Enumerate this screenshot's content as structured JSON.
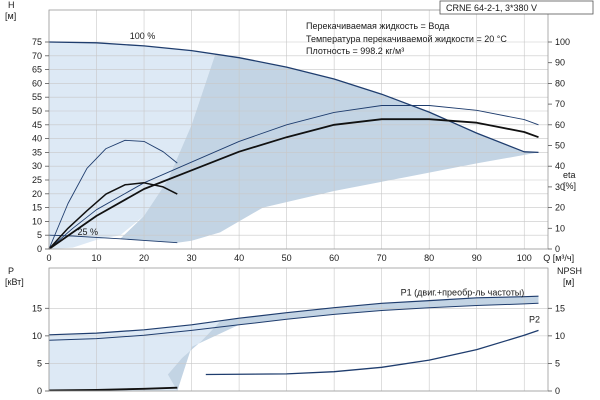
{
  "model_label": "CRNE 64-2-1, 3*380 V",
  "info_lines": [
    "Перекачиваемая жидкость = Вода",
    "Температура перекачиваемой жидкости = 20 °C",
    "Плотность = 998.2 кг/м³"
  ],
  "colors": {
    "curve": "#1f3d6e",
    "area_light": "#dde9f5",
    "area_dark": "#c3d4e4",
    "grid": "#c8c8c8",
    "frame": "#9a9a9a"
  },
  "chart_data": [
    {
      "id": "top",
      "type": "line",
      "left_axis": {
        "name": "H",
        "unit": "[м]",
        "ylim": [
          0,
          75
        ],
        "ticks": [
          0,
          5,
          10,
          15,
          20,
          25,
          30,
          35,
          40,
          45,
          50,
          55,
          60,
          65,
          70,
          75
        ]
      },
      "right_axis": {
        "name": "eta",
        "unit": "[%]",
        "ylim": [
          0,
          100
        ],
        "ticks": [
          0,
          10,
          20,
          30,
          40,
          50,
          60,
          70,
          80,
          90,
          100
        ]
      },
      "x_axis": {
        "name": "Q",
        "unit": "[м³/ч]",
        "xlim": [
          0,
          105
        ],
        "ticks": [
          0,
          10,
          20,
          30,
          40,
          50,
          60,
          70,
          80,
          90,
          100
        ]
      },
      "grid": true,
      "speed_labels": [
        {
          "text": "100 %",
          "x": 17,
          "y": 76
        },
        {
          "text": "25 %",
          "x": 6,
          "y": 5
        }
      ],
      "series": [
        {
          "axis": "left",
          "width": 1.3,
          "points": [
            [
              0,
              75
            ],
            [
              10,
              74.7
            ],
            [
              20,
              73.6
            ],
            [
              30,
              71.9
            ],
            [
              40,
              69.3
            ],
            [
              50,
              65.9
            ],
            [
              60,
              61.6
            ],
            [
              70,
              56.1
            ],
            [
              80,
              49.6
            ],
            [
              90,
              42.0
            ],
            [
              100,
              35.2
            ],
            [
              103,
              35
            ]
          ]
        },
        {
          "axis": "left",
          "width": 0.9,
          "points": [
            [
              0,
              5.0
            ],
            [
              5,
              4.7
            ],
            [
              10,
              4.2
            ],
            [
              15,
              3.7
            ],
            [
              20,
              3.1
            ],
            [
              27,
              2.3
            ]
          ]
        },
        {
          "axis": "right",
          "width": 0.9,
          "points": [
            [
              0,
              0
            ],
            [
              5,
              10
            ],
            [
              10,
              19
            ],
            [
              20,
              32
            ],
            [
              30,
              42
            ],
            [
              40,
              52
            ],
            [
              50,
              60
            ],
            [
              60,
              66
            ],
            [
              70,
              69.3
            ],
            [
              80,
              69.3
            ],
            [
              90,
              67
            ],
            [
              100,
              62.5
            ],
            [
              103,
              60
            ]
          ]
        },
        {
          "axis": "right",
          "width": 1.8,
          "points": [
            [
              0,
              0
            ],
            [
              5,
              8
            ],
            [
              10,
              16
            ],
            [
              20,
              29
            ],
            [
              30,
              38
            ],
            [
              40,
              47
            ],
            [
              50,
              54
            ],
            [
              60,
              60
            ],
            [
              70,
              62.7
            ],
            [
              80,
              62.7
            ],
            [
              90,
              61
            ],
            [
              100,
              56.5
            ],
            [
              103,
              54
            ]
          ]
        },
        {
          "axis": "right",
          "width": 0.9,
          "points": [
            [
              0,
              0
            ],
            [
              4,
              22
            ],
            [
              8,
              39
            ],
            [
              12,
              48.5
            ],
            [
              16,
              52.5
            ],
            [
              20,
              52
            ],
            [
              24,
              47
            ],
            [
              27,
              41.5
            ]
          ]
        },
        {
          "axis": "right",
          "width": 1.5,
          "points": [
            [
              0,
              0
            ],
            [
              4,
              10
            ],
            [
              8,
              18.5
            ],
            [
              12,
              26.5
            ],
            [
              16,
              31
            ],
            [
              20,
              32
            ],
            [
              24,
              30
            ],
            [
              27,
              26.5
            ]
          ]
        }
      ],
      "regions": [
        {
          "shade": "light",
          "points": [
            [
              0,
              0
            ],
            [
              0,
              75
            ],
            [
              10,
              74.7
            ],
            [
              20,
              73.6
            ],
            [
              30,
              71.9
            ],
            [
              35,
              70.6
            ],
            [
              30,
              45
            ],
            [
              25,
              25
            ],
            [
              20,
              12
            ],
            [
              15,
              5
            ],
            [
              10,
              3.3
            ],
            [
              5,
              0.5
            ]
          ]
        },
        {
          "shade": "dark",
          "points": [
            [
              35,
              70.6
            ],
            [
              40,
              69.3
            ],
            [
              50,
              65.9
            ],
            [
              60,
              61.6
            ],
            [
              70,
              56.1
            ],
            [
              80,
              49.6
            ],
            [
              90,
              42.0
            ],
            [
              100,
              35.2
            ],
            [
              103,
              35
            ],
            [
              90,
              31
            ],
            [
              75,
              26
            ],
            [
              60,
              21
            ],
            [
              45,
              15
            ],
            [
              36,
              6
            ],
            [
              30,
              3
            ],
            [
              27,
              2.3
            ],
            [
              20,
              3.1
            ],
            [
              15,
              3.7
            ],
            [
              20,
              12
            ],
            [
              25,
              25
            ],
            [
              30,
              45
            ]
          ]
        }
      ]
    },
    {
      "id": "bottom",
      "type": "line",
      "left_axis": {
        "name": "P",
        "unit": "[кВт]",
        "ylim": [
          0,
          18.5
        ],
        "ticks": [
          0,
          5,
          10,
          15
        ]
      },
      "right_axis": {
        "name": "NPSH",
        "unit": "[м]",
        "ylim": [
          0,
          18.5
        ],
        "ticks": [
          0,
          5,
          10,
          15
        ]
      },
      "x_axis": {
        "xlim": [
          0,
          105
        ],
        "ticks": [
          0,
          10,
          20,
          30,
          40,
          50,
          60,
          70,
          80,
          90,
          100
        ]
      },
      "grid": true,
      "series_labels": [
        {
          "text": "P1 (двиг.+преобр-ль частоты)",
          "x": 74,
          "y": 17.3
        },
        {
          "text": "P2",
          "x": 101,
          "y": 12.4
        }
      ],
      "series": [
        {
          "axis": "left",
          "width": 1.2,
          "points": [
            [
              0,
              10.2
            ],
            [
              10,
              10.5
            ],
            [
              20,
              11.1
            ],
            [
              30,
              12.0
            ],
            [
              40,
              13.2
            ],
            [
              50,
              14.2
            ],
            [
              60,
              15.1
            ],
            [
              70,
              15.9
            ],
            [
              80,
              16.4
            ],
            [
              90,
              16.9
            ],
            [
              100,
              17.1
            ],
            [
              103,
              17.2
            ]
          ]
        },
        {
          "axis": "left",
          "width": 1.0,
          "points": [
            [
              0,
              9.2
            ],
            [
              10,
              9.5
            ],
            [
              20,
              10.1
            ],
            [
              30,
              11.0
            ],
            [
              40,
              12.0
            ],
            [
              50,
              13.0
            ],
            [
              60,
              13.9
            ],
            [
              70,
              14.6
            ],
            [
              80,
              15.1
            ],
            [
              90,
              15.5
            ],
            [
              100,
              15.8
            ],
            [
              103,
              15.9
            ]
          ]
        },
        {
          "axis": "right",
          "width": 1.3,
          "points": [
            [
              33,
              3.0
            ],
            [
              50,
              3.1
            ],
            [
              60,
              3.5
            ],
            [
              70,
              4.3
            ],
            [
              80,
              5.6
            ],
            [
              90,
              7.5
            ],
            [
              100,
              10.1
            ],
            [
              103,
              11.0
            ]
          ]
        },
        {
          "axis": "right",
          "width": 1.8,
          "points": [
            [
              0,
              0.1
            ],
            [
              10,
              0.2
            ],
            [
              20,
              0.4
            ],
            [
              27,
              0.6
            ]
          ]
        }
      ],
      "regions": [
        {
          "shade": "light",
          "points": [
            [
              0,
              0
            ],
            [
              0,
              10.2
            ],
            [
              10,
              10.5
            ],
            [
              20,
              11.1
            ],
            [
              30,
              12.0
            ],
            [
              36,
              12.6
            ],
            [
              32,
              9
            ],
            [
              28,
              6
            ],
            [
              25,
              3
            ],
            [
              27,
              0
            ],
            [
              0,
              0
            ]
          ]
        },
        {
          "shade": "dark",
          "points": [
            [
              36,
              12.6
            ],
            [
              40,
              13.2
            ],
            [
              50,
              14.2
            ],
            [
              60,
              15.1
            ],
            [
              70,
              15.9
            ],
            [
              80,
              16.4
            ],
            [
              90,
              16.9
            ],
            [
              100,
              17.1
            ],
            [
              103,
              17.2
            ],
            [
              103,
              15.9
            ],
            [
              100,
              15.8
            ],
            [
              90,
              15.5
            ],
            [
              80,
              15.1
            ],
            [
              70,
              14.6
            ],
            [
              60,
              13.9
            ],
            [
              50,
              13.0
            ],
            [
              40,
              12.0
            ],
            [
              30,
              8
            ],
            [
              27,
              0
            ],
            [
              25,
              3
            ],
            [
              28,
              6
            ],
            [
              32,
              9
            ]
          ]
        }
      ]
    }
  ]
}
